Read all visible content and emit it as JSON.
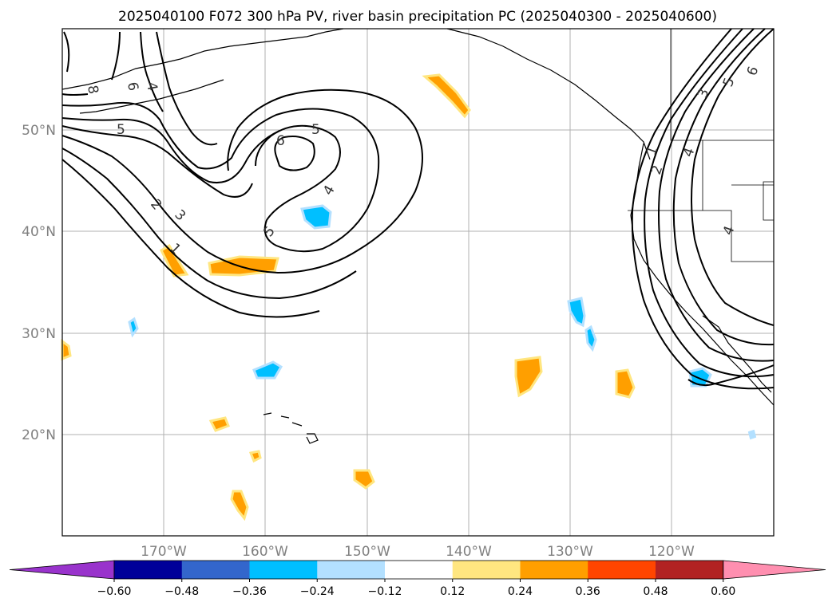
{
  "title": "2025040100 F072 300 hPa PV, river basin precipitation PC (2025040300 - 2025040600)",
  "latitude_labels": [
    "20°N",
    "30°N",
    "40°N",
    "50°N"
  ],
  "longitude_labels": [
    "170°W",
    "160°W",
    "150°W",
    "140°W",
    "130°W",
    "120°W"
  ],
  "colorbar": {
    "colors": [
      "#9933cc",
      "#000099",
      "#3366cc",
      "#00bfff",
      "#b3e0ff",
      "#ffffff",
      "#ffe680",
      "#ff9f00",
      "#ff4500",
      "#b22222",
      "#ff8fb0"
    ],
    "tick_labels": [
      "−0.60",
      "−0.48",
      "−0.36",
      "−0.24",
      "−0.12",
      "0.12",
      "0.24",
      "0.36",
      "0.48",
      "0.60"
    ]
  },
  "contour_labels": [
    "8",
    "6",
    "4",
    "5",
    "5",
    "6",
    "4",
    "5",
    "2",
    "3",
    "1",
    "3",
    "5",
    "6",
    "1",
    "2",
    "4",
    "4"
  ]
}
